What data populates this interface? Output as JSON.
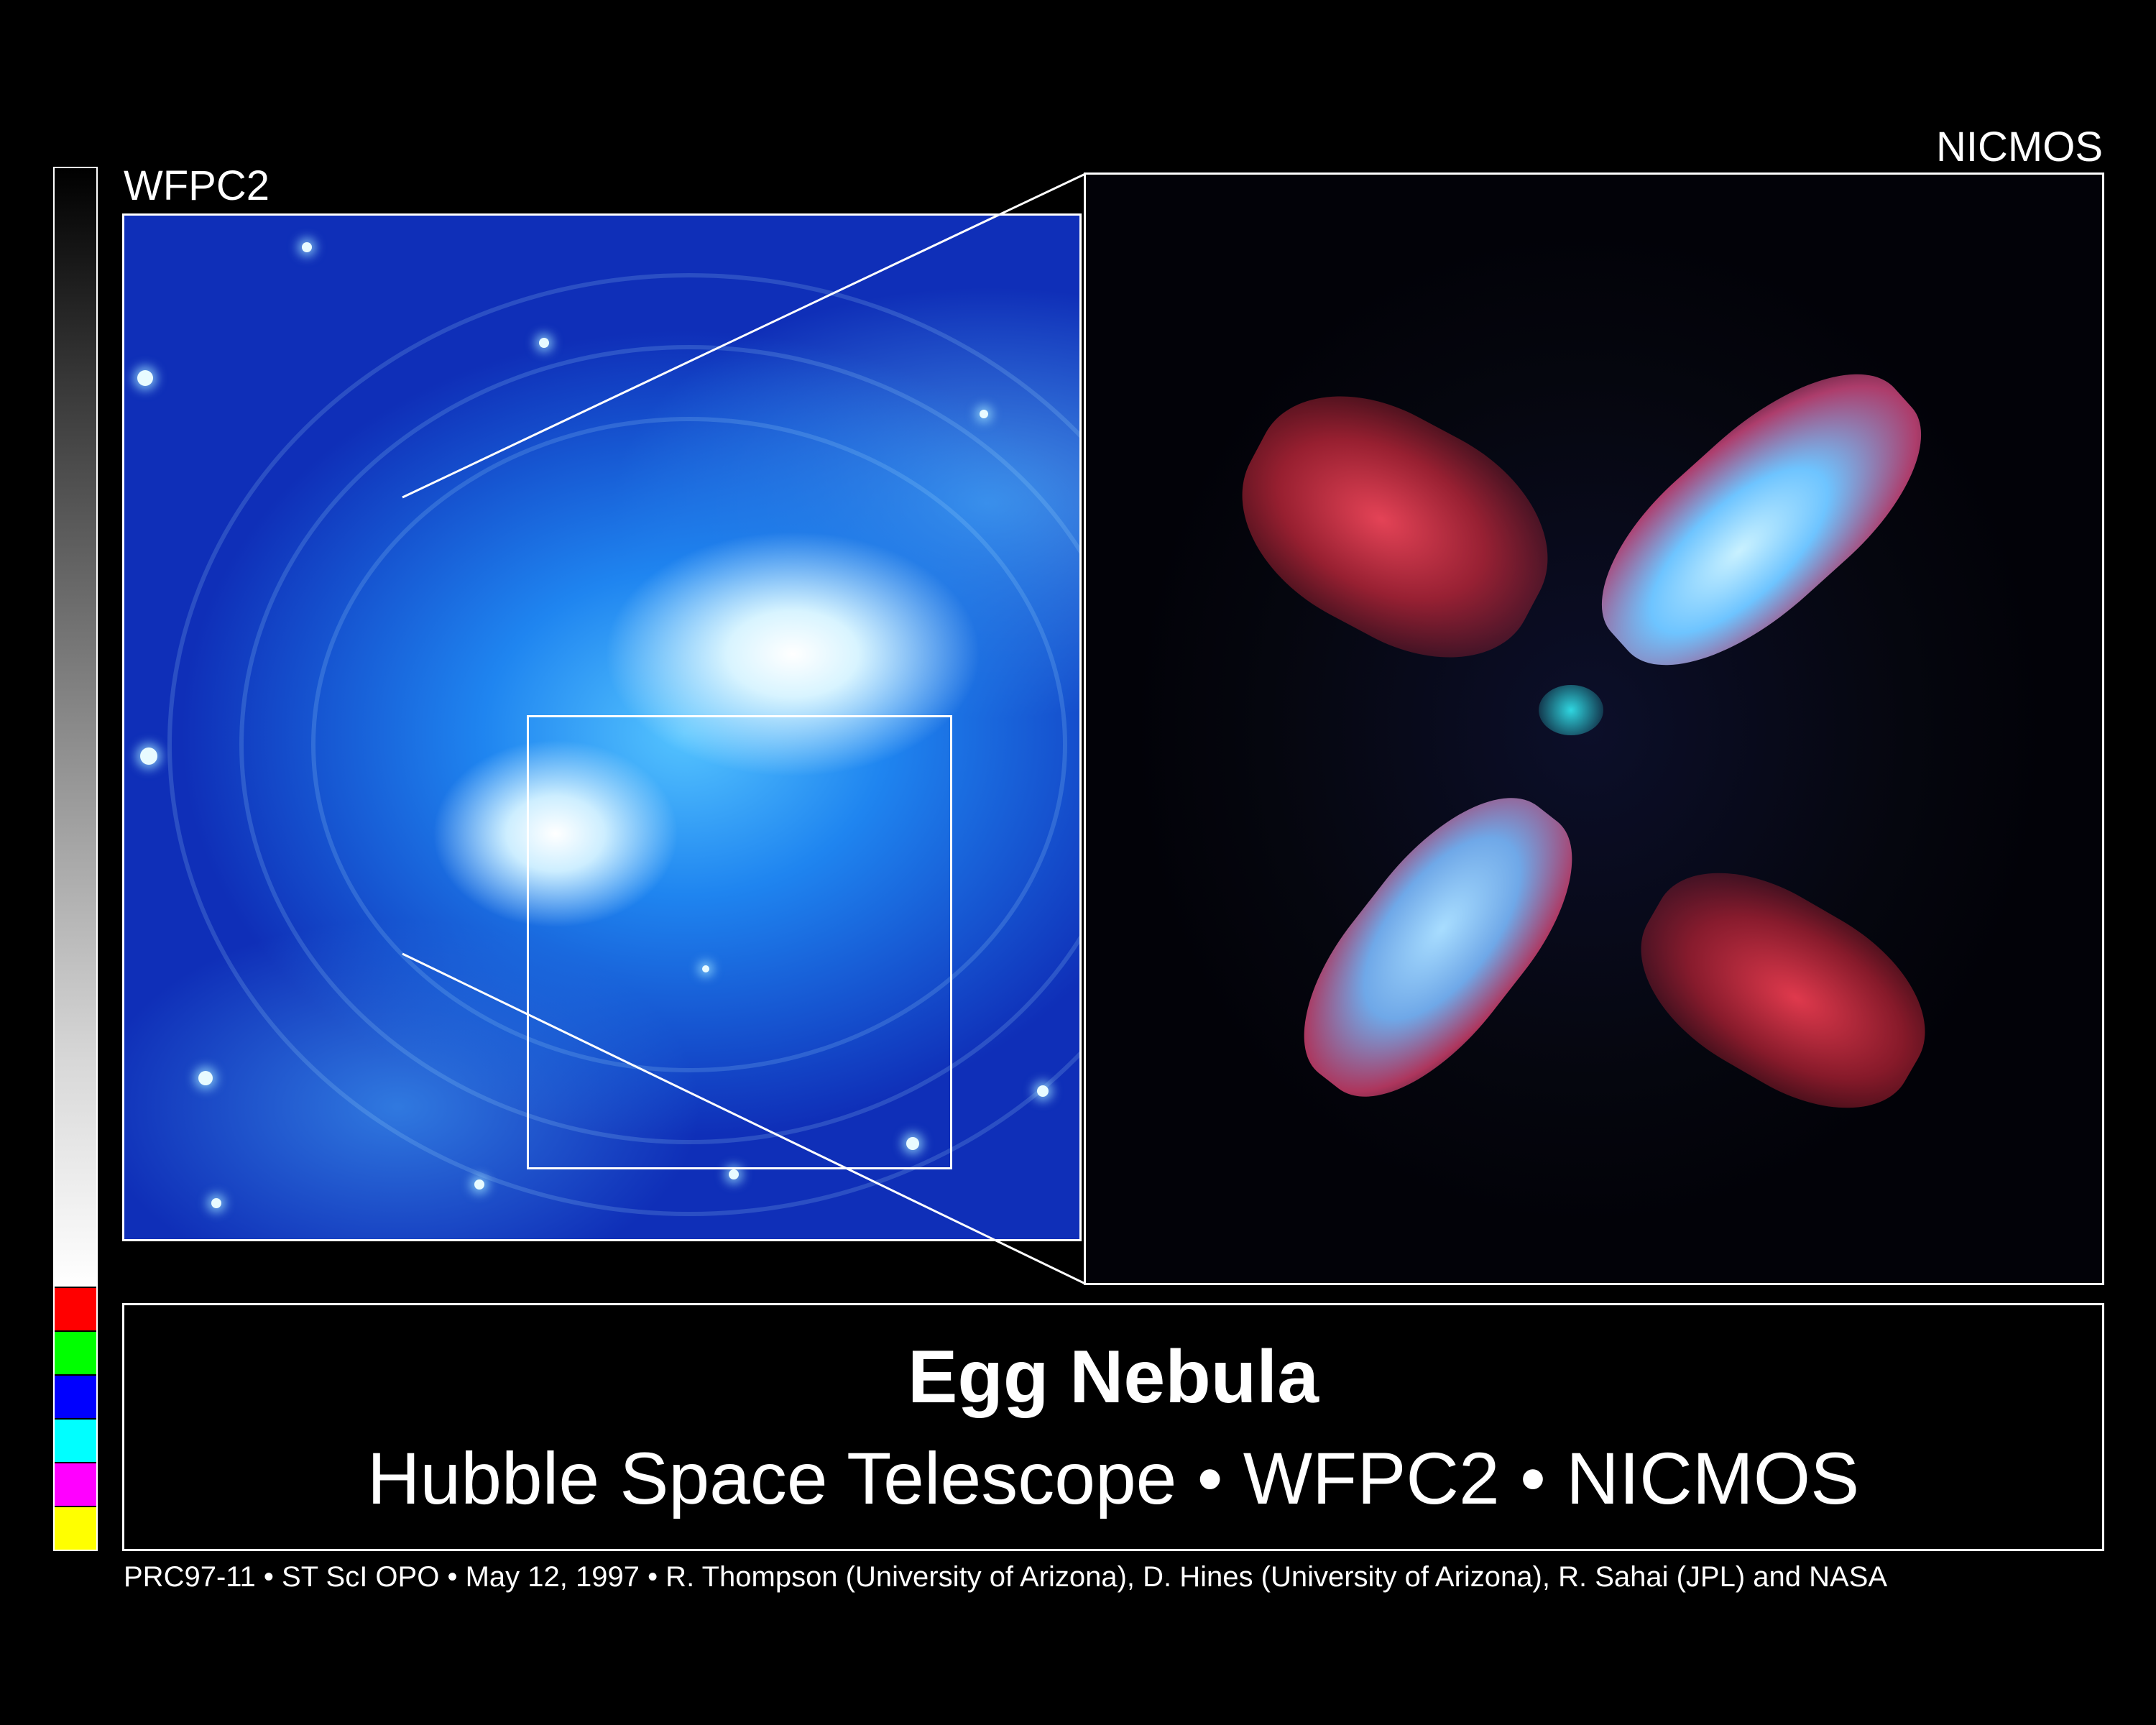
{
  "labels": {
    "left_panel": "WFPC2",
    "right_panel": "NICMOS"
  },
  "title": "Egg Nebula",
  "subtitle": "Hubble Space Telescope • WFPC2 • NICMOS",
  "credit": "PRC97-11 • ST ScI OPO • May 12, 1997 • R. Thompson (University of Arizona), D. Hines (University of Arizona), R. Sahai (JPL) and NASA",
  "calibration_strip": {
    "gradient": "black-to-white",
    "swatches": [
      "#ff0000",
      "#00ff00",
      "#0000ff",
      "#00ffff",
      "#ff00ff",
      "#ffff00"
    ]
  },
  "colors": {
    "background": "#000000",
    "frame": "#ffffff",
    "wfpc2_tint": "#1f85f0",
    "nicmos_red": "#e0303f",
    "nicmos_blue": "#8fd0ff"
  }
}
